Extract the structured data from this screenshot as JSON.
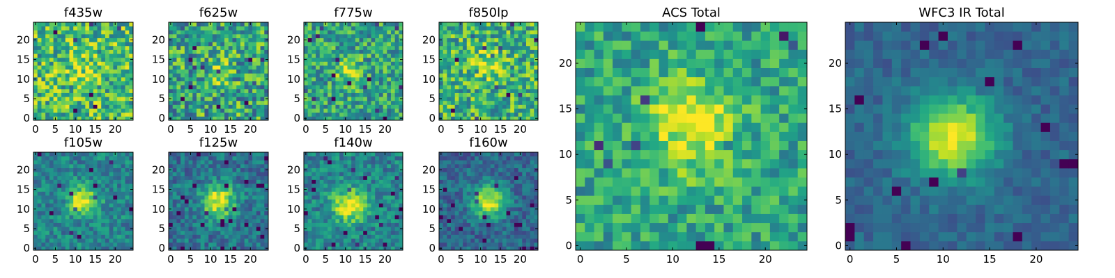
{
  "chart_data": [
    {
      "type": "heatmap",
      "title": "f435w",
      "colormap": "viridis",
      "grid_size": [
        25,
        25
      ],
      "center": [
        12,
        12
      ],
      "peak": 0.15,
      "sigma": 3.0,
      "background": 0.68,
      "noise": 0.3,
      "xlim": [
        0,
        24
      ],
      "ylim": [
        0,
        24
      ],
      "xticks": [
        "0",
        "5",
        "10",
        "15",
        "20"
      ],
      "yticks": [
        "0",
        "5",
        "10",
        "15",
        "20"
      ],
      "seed": 11
    },
    {
      "type": "heatmap",
      "title": "f625w",
      "colormap": "viridis",
      "grid_size": [
        25,
        25
      ],
      "center": [
        12,
        12
      ],
      "peak": 0.15,
      "sigma": 3.0,
      "background": 0.58,
      "noise": 0.32,
      "xlim": [
        0,
        24
      ],
      "ylim": [
        0,
        24
      ],
      "xticks": [
        "0",
        "5",
        "10",
        "15",
        "20"
      ],
      "yticks": [
        "0",
        "5",
        "10",
        "15",
        "20"
      ],
      "seed": 23
    },
    {
      "type": "heatmap",
      "title": "f775w",
      "colormap": "viridis",
      "grid_size": [
        25,
        25
      ],
      "center": [
        11,
        12
      ],
      "peak": 0.35,
      "sigma": 2.2,
      "background": 0.58,
      "noise": 0.26,
      "xlim": [
        0,
        24
      ],
      "ylim": [
        0,
        24
      ],
      "xticks": [
        "0",
        "5",
        "10",
        "15",
        "20"
      ],
      "yticks": [
        "0",
        "5",
        "10",
        "15",
        "20"
      ],
      "seed": 37
    },
    {
      "type": "heatmap",
      "title": "f850lp",
      "colormap": "viridis",
      "grid_size": [
        25,
        25
      ],
      "center": [
        12,
        14
      ],
      "peak": 0.28,
      "sigma": 2.5,
      "background": 0.64,
      "noise": 0.28,
      "xlim": [
        0,
        24
      ],
      "ylim": [
        0,
        24
      ],
      "xticks": [
        "0",
        "5",
        "10",
        "15",
        "20"
      ],
      "yticks": [
        "0",
        "5",
        "10",
        "15",
        "20"
      ],
      "seed": 41
    },
    {
      "type": "heatmap",
      "title": "f105w",
      "colormap": "viridis",
      "grid_size": [
        25,
        25
      ],
      "center": [
        12,
        12
      ],
      "peak": 0.55,
      "sigma": 2.5,
      "background": 0.45,
      "noise": 0.17,
      "xlim": [
        0,
        24
      ],
      "ylim": [
        0,
        24
      ],
      "xticks": [
        "0",
        "5",
        "10",
        "15",
        "20"
      ],
      "yticks": [
        "0",
        "5",
        "10",
        "15",
        "20"
      ],
      "seed": 53
    },
    {
      "type": "heatmap",
      "title": "f125w",
      "colormap": "viridis",
      "grid_size": [
        25,
        25
      ],
      "center": [
        12,
        12
      ],
      "peak": 0.6,
      "sigma": 3.0,
      "background": 0.38,
      "noise": 0.17,
      "xlim": [
        0,
        24
      ],
      "ylim": [
        0,
        24
      ],
      "xticks": [
        "0",
        "5",
        "10",
        "15",
        "20"
      ],
      "yticks": [
        "0",
        "5",
        "10",
        "15",
        "20"
      ],
      "seed": 67
    },
    {
      "type": "heatmap",
      "title": "f140w",
      "colormap": "viridis",
      "grid_size": [
        25,
        25
      ],
      "center": [
        11,
        11
      ],
      "peak": 0.55,
      "sigma": 3.0,
      "background": 0.45,
      "noise": 0.18,
      "xlim": [
        0,
        24
      ],
      "ylim": [
        0,
        24
      ],
      "xticks": [
        "0",
        "5",
        "10",
        "15",
        "20"
      ],
      "yticks": [
        "0",
        "5",
        "10",
        "15",
        "20"
      ],
      "seed": 71
    },
    {
      "type": "heatmap",
      "title": "f160w",
      "colormap": "viridis",
      "grid_size": [
        25,
        25
      ],
      "center": [
        12,
        12
      ],
      "peak": 0.62,
      "sigma": 3.0,
      "background": 0.33,
      "noise": 0.15,
      "xlim": [
        0,
        24
      ],
      "ylim": [
        0,
        24
      ],
      "xticks": [
        "0",
        "5",
        "10",
        "15",
        "20"
      ],
      "yticks": [
        "0",
        "5",
        "10",
        "15",
        "20"
      ],
      "seed": 83
    },
    {
      "type": "heatmap",
      "title": "ACS Total",
      "colormap": "viridis",
      "grid_size": [
        25,
        25
      ],
      "center": [
        12,
        13
      ],
      "peak": 0.4,
      "sigma": 3.5,
      "background": 0.58,
      "noise": 0.2,
      "xlim": [
        0,
        24
      ],
      "ylim": [
        0,
        24
      ],
      "xticks": [
        "0",
        "5",
        "10",
        "15",
        "20"
      ],
      "yticks": [
        "0",
        "5",
        "10",
        "15",
        "20"
      ],
      "seed": 97
    },
    {
      "type": "heatmap",
      "title": "WFC3 IR Total",
      "colormap": "viridis",
      "grid_size": [
        25,
        25
      ],
      "center": [
        11,
        12
      ],
      "peak": 0.65,
      "sigma": 3.2,
      "background": 0.33,
      "noise": 0.09,
      "xlim": [
        0,
        24
      ],
      "ylim": [
        0,
        24
      ],
      "xticks": [
        "0",
        "5",
        "10",
        "15",
        "20"
      ],
      "yticks": [
        "0",
        "5",
        "10",
        "15",
        "20"
      ],
      "seed": 101
    }
  ]
}
